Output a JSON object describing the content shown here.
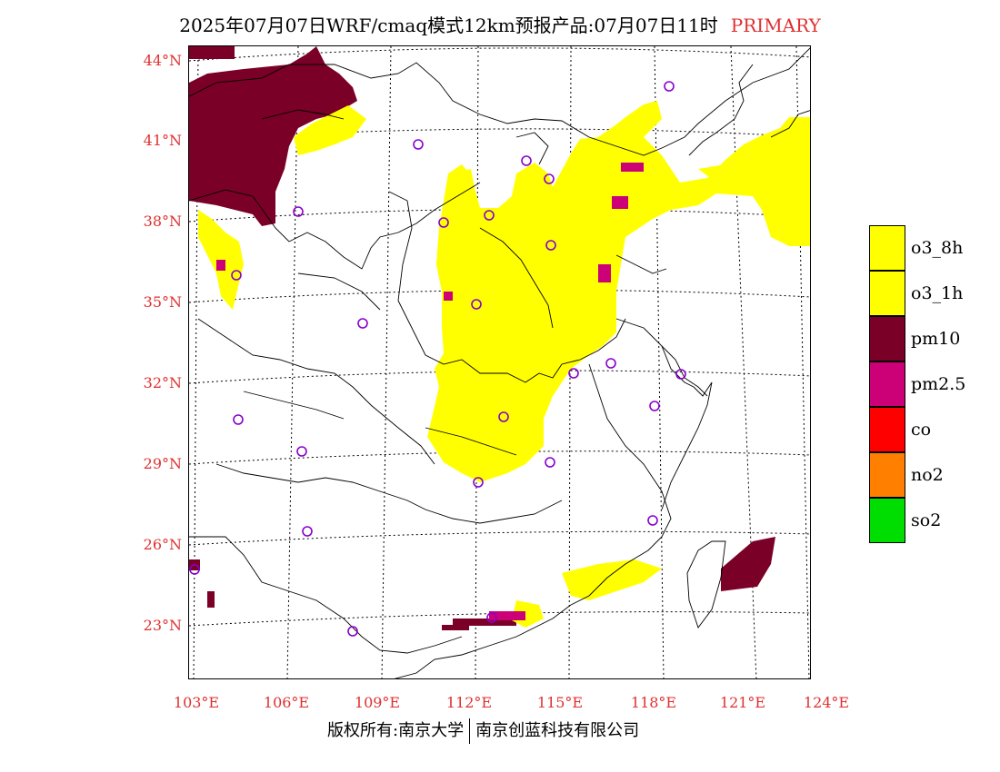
{
  "title": {
    "main": "2025年07月07日WRF/cmaq模式12km预报产品:07月07日11时",
    "tag": "PRIMARY"
  },
  "axes": {
    "lat_labels": [
      "44°N",
      "41°N",
      "38°N",
      "35°N",
      "32°N",
      "29°N",
      "26°N",
      "23°N"
    ],
    "lon_labels": [
      "103°E",
      "106°E",
      "109°E",
      "112°E",
      "115°E",
      "118°E",
      "121°E",
      "124°E"
    ]
  },
  "legend": [
    {
      "label": "o3_8h",
      "color": "#ffff00"
    },
    {
      "label": "o3_1h",
      "color": "#ffff00"
    },
    {
      "label": "pm10",
      "color": "#7a0028"
    },
    {
      "label": "pm2.5",
      "color": "#cc0077"
    },
    {
      "label": "co",
      "color": "#ff0000"
    },
    {
      "label": "no2",
      "color": "#ff7f00"
    },
    {
      "label": "so2",
      "color": "#00dd00"
    }
  ],
  "footer": {
    "left": "版权所有:南京大学",
    "right": "南京创蓝科技有限公司"
  }
}
